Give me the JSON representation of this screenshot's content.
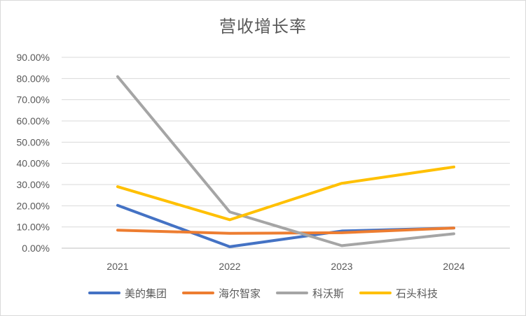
{
  "chart_data": {
    "type": "line",
    "title": "营收增长率",
    "categories": [
      "2021",
      "2022",
      "2023",
      "2024"
    ],
    "y_ticks": [
      "0.00%",
      "10.00%",
      "20.00%",
      "30.00%",
      "40.00%",
      "50.00%",
      "60.00%",
      "70.00%",
      "80.00%",
      "90.00%"
    ],
    "ylim": [
      0,
      90
    ],
    "y_unit": "%",
    "grid": true,
    "legend_position": "bottom",
    "series": [
      {
        "name": "美的集团",
        "color": "#4472C4",
        "values": [
          20.2,
          0.7,
          8.1,
          9.5
        ]
      },
      {
        "name": "海尔智家",
        "color": "#ED7D31",
        "values": [
          8.5,
          7.0,
          7.3,
          9.5
        ]
      },
      {
        "name": "科沃斯",
        "color": "#A5A5A5",
        "values": [
          80.9,
          17.1,
          1.2,
          6.8
        ]
      },
      {
        "name": "石头科技",
        "color": "#FFC000",
        "values": [
          29.0,
          13.4,
          30.6,
          38.3
        ]
      }
    ]
  }
}
